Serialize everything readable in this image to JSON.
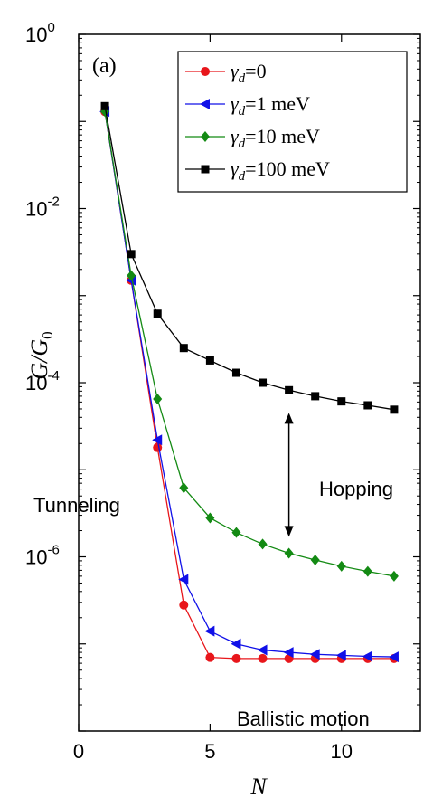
{
  "chart_data": {
    "type": "line",
    "panel_label": "(a)",
    "xlabel": "N",
    "ylabel": "G/G",
    "ylabel_sub": "0",
    "xlim": [
      0,
      13
    ],
    "ylim": [
      1e-08,
      1
    ],
    "yscale": "log",
    "x_ticks": [
      {
        "value": 0,
        "label": "0"
      },
      {
        "value": 5,
        "label": "5"
      },
      {
        "value": 10,
        "label": "10"
      }
    ],
    "y_ticks": [
      {
        "value": 1,
        "base": "10",
        "exp": "0"
      },
      {
        "value": 0.01,
        "base": "10",
        "exp": "-2"
      },
      {
        "value": 0.0001,
        "base": "10",
        "exp": "-4"
      },
      {
        "value": 1e-06,
        "base": "10",
        "exp": "-6"
      }
    ],
    "series": [
      {
        "name": "γd=0",
        "legend_var": "γ",
        "legend_sub": "d",
        "legend_val": "=0",
        "color": "#e8161b",
        "marker": "circle",
        "x": [
          1,
          2,
          3,
          4,
          5,
          6,
          7,
          8,
          9,
          10,
          11,
          12
        ],
        "y": [
          0.13,
          0.0015,
          1.8e-05,
          2.8e-07,
          7e-08,
          6.8e-08,
          6.8e-08,
          6.8e-08,
          6.8e-08,
          6.8e-08,
          6.8e-08,
          6.8e-08
        ]
      },
      {
        "name": "γd=1 meV",
        "legend_var": "γ",
        "legend_sub": "d",
        "legend_val": "=1 meV",
        "color": "#1010e8",
        "marker": "triangle-left",
        "x": [
          1,
          2,
          3,
          4,
          5,
          6,
          7,
          8,
          9,
          10,
          11,
          12
        ],
        "y": [
          0.13,
          0.0015,
          2.2e-05,
          5.5e-07,
          1.4e-07,
          1e-07,
          8.5e-08,
          8e-08,
          7.6e-08,
          7.4e-08,
          7.2e-08,
          7.1e-08
        ]
      },
      {
        "name": "γd=10 meV",
        "legend_var": "γ",
        "legend_sub": "d",
        "legend_val": "=10 meV",
        "color": "#138a13",
        "marker": "diamond",
        "x": [
          1,
          2,
          3,
          4,
          5,
          6,
          7,
          8,
          9,
          10,
          11,
          12
        ],
        "y": [
          0.13,
          0.0017,
          6.5e-05,
          6.2e-06,
          2.8e-06,
          1.9e-06,
          1.4e-06,
          1.1e-06,
          9.2e-07,
          7.8e-07,
          6.8e-07,
          6e-07
        ]
      },
      {
        "name": "γd=100 meV",
        "legend_var": "γ",
        "legend_sub": "d",
        "legend_val": "=100 meV",
        "color": "#000000",
        "marker": "square",
        "x": [
          1,
          2,
          3,
          4,
          5,
          6,
          7,
          8,
          9,
          10,
          11,
          12
        ],
        "y": [
          0.15,
          0.003,
          0.00062,
          0.00025,
          0.00018,
          0.00013,
          0.0001,
          8.2e-05,
          7e-05,
          6.1e-05,
          5.5e-05,
          4.9e-05
        ]
      }
    ],
    "annotations": [
      {
        "id": "tunneling",
        "text": "Tunneling",
        "x": 0.3,
        "y": 1.1e-05
      },
      {
        "id": "hopping",
        "text": "Hopping",
        "x": 10.4,
        "y": 1.4e-05
      },
      {
        "id": "ballistic",
        "text": "Ballistic motion",
        "x": 9.2,
        "y": 2.8e-08
      }
    ],
    "arrow": {
      "x": 8,
      "y_top": 4.5e-05,
      "y_bottom": 1.7e-06
    },
    "legend_position": "top-right"
  }
}
